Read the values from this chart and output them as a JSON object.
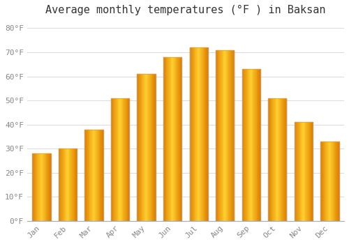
{
  "title": "Average monthly temperatures (°F ) in Baksan",
  "months": [
    "Jan",
    "Feb",
    "Mar",
    "Apr",
    "May",
    "Jun",
    "Jul",
    "Aug",
    "Sep",
    "Oct",
    "Nov",
    "Dec"
  ],
  "values": [
    28,
    30,
    38,
    51,
    61,
    68,
    72,
    71,
    63,
    51,
    41,
    33
  ],
  "bar_color_main": "#FFA500",
  "bar_color_light": "#FFD060",
  "bar_color_dark": "#E08000",
  "bar_edge_color": "#AAAAAA",
  "background_color": "#FFFFFF",
  "grid_color": "#DDDDDD",
  "title_fontsize": 11,
  "tick_fontsize": 8,
  "ytick_labels": [
    "0°F",
    "10°F",
    "20°F",
    "30°F",
    "40°F",
    "50°F",
    "60°F",
    "70°F",
    "80°F"
  ],
  "ytick_values": [
    0,
    10,
    20,
    30,
    40,
    50,
    60,
    70,
    80
  ],
  "ylim": [
    0,
    83
  ],
  "font_family": "monospace"
}
